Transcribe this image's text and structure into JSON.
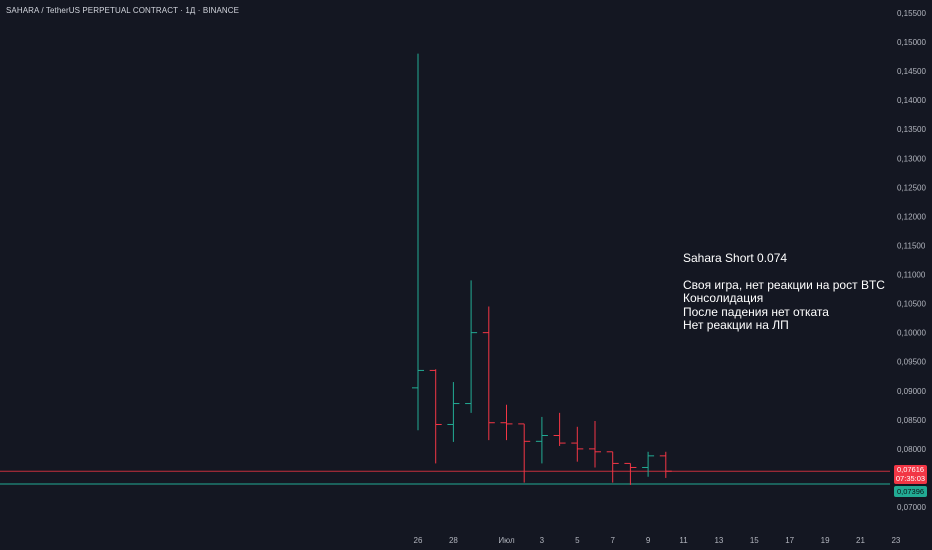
{
  "header": {
    "title": "SAHARA / TetherUS PERPETUAL CONTRACT · 1Д · BINANCE"
  },
  "annotation": {
    "headline": "Sahara Short 0.074",
    "lines": [
      "Своя игра, нет реакции на рост BTC",
      "Консолидация",
      "После падения нет отката",
      "Нет реакции на ЛП"
    ]
  },
  "price_tags": {
    "last_price": "0,07616",
    "countdown": "07:35:03",
    "level_price": "0,07396"
  },
  "colors": {
    "background": "#141722",
    "up": "#22ab94",
    "down": "#f23645",
    "level_line": "#22ab94",
    "last_price_line": "#f23645",
    "text": "#b2b5be"
  },
  "chart_data": {
    "type": "ohlc",
    "title": "SAHARA / TetherUS PERPETUAL CONTRACT · 1Д · BINANCE",
    "xlabel": "",
    "ylabel": "",
    "ylim": [
      0.0685,
      0.1555
    ],
    "y_ticks": [
      "0,15500",
      "0,15000",
      "0,14500",
      "0,14000",
      "0,13500",
      "0,13000",
      "0,12500",
      "0,12000",
      "0,11500",
      "0,11000",
      "0,10500",
      "0,10000",
      "0,09500",
      "0,09000",
      "0,08500",
      "0,08000",
      "0,07500",
      "0,07000"
    ],
    "x_ticks": [
      "26",
      "28",
      "Июл",
      "3",
      "5",
      "7",
      "9",
      "11",
      "13",
      "15",
      "17",
      "19",
      "21",
      "23"
    ],
    "grid": false,
    "candles": [
      {
        "date": "Jun 26",
        "open": 0.0905,
        "high": 0.148,
        "low": 0.0832,
        "close": 0.0935
      },
      {
        "date": "Jun 27",
        "open": 0.0935,
        "high": 0.0937,
        "low": 0.0775,
        "close": 0.0842
      },
      {
        "date": "Jun 28",
        "open": 0.0842,
        "high": 0.0915,
        "low": 0.0812,
        "close": 0.0878
      },
      {
        "date": "Jun 29",
        "open": 0.0878,
        "high": 0.109,
        "low": 0.0862,
        "close": 0.1
      },
      {
        "date": "Jun 30",
        "open": 0.1,
        "high": 0.1045,
        "low": 0.0815,
        "close": 0.0845
      },
      {
        "date": "Jul 1",
        "open": 0.0845,
        "high": 0.0876,
        "low": 0.0815,
        "close": 0.0843
      },
      {
        "date": "Jul 2",
        "open": 0.0843,
        "high": 0.0843,
        "low": 0.0742,
        "close": 0.0813
      },
      {
        "date": "Jul 3",
        "open": 0.0813,
        "high": 0.0855,
        "low": 0.0775,
        "close": 0.0823
      },
      {
        "date": "Jul 4",
        "open": 0.0823,
        "high": 0.0862,
        "low": 0.0805,
        "close": 0.081
      },
      {
        "date": "Jul 5",
        "open": 0.081,
        "high": 0.0838,
        "low": 0.0778,
        "close": 0.08
      },
      {
        "date": "Jul 6",
        "open": 0.08,
        "high": 0.0848,
        "low": 0.0768,
        "close": 0.0795
      },
      {
        "date": "Jul 7",
        "open": 0.0795,
        "high": 0.0795,
        "low": 0.0742,
        "close": 0.0775
      },
      {
        "date": "Jul 8",
        "open": 0.0775,
        "high": 0.0775,
        "low": 0.0738,
        "close": 0.0768
      },
      {
        "date": "Jul 9",
        "open": 0.0768,
        "high": 0.0795,
        "low": 0.0752,
        "close": 0.0788
      },
      {
        "date": "Jul 10",
        "open": 0.0788,
        "high": 0.0795,
        "low": 0.075,
        "close": 0.07616
      }
    ],
    "horizontal_lines": [
      {
        "value": 0.07616,
        "color": "#f23645"
      },
      {
        "value": 0.07396,
        "color": "#22ab94"
      }
    ]
  }
}
